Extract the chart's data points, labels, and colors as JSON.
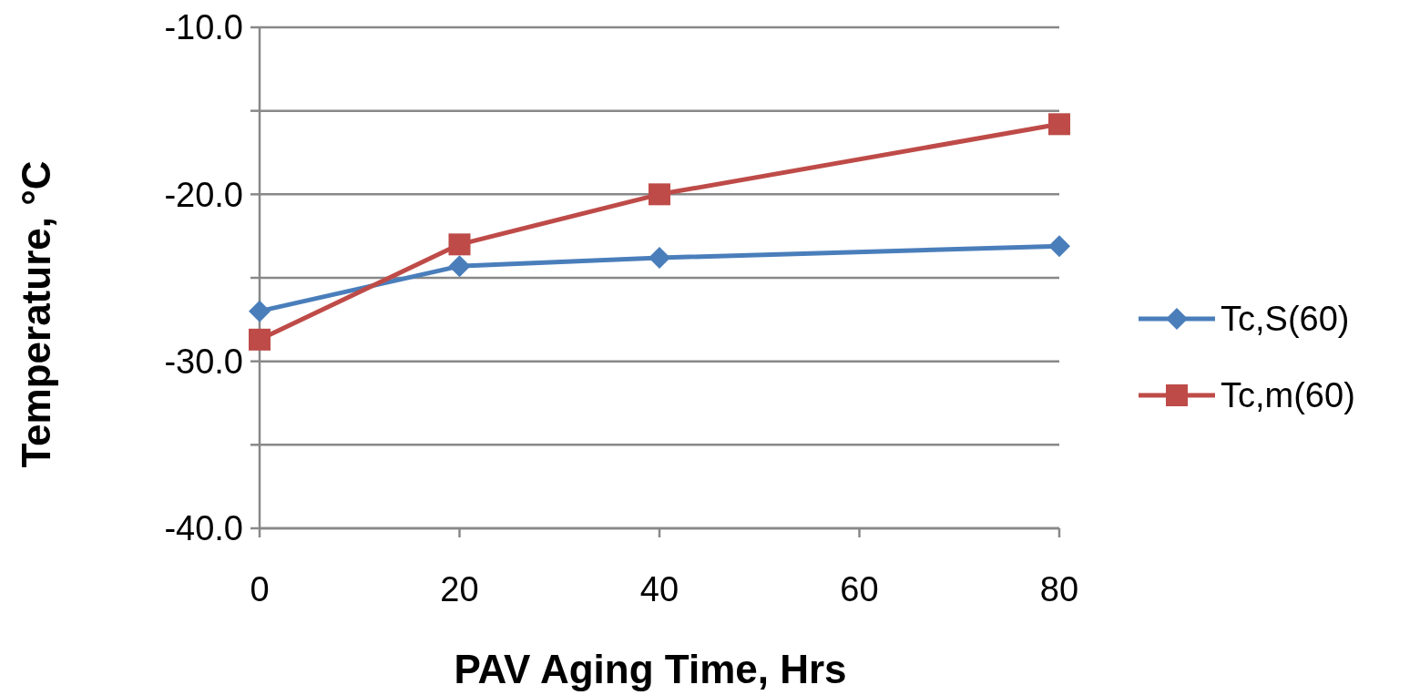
{
  "chart_data": {
    "type": "line",
    "xlabel": "PAV Aging Time, Hrs",
    "ylabel": "Temperature, °C",
    "x": [
      0,
      20,
      40,
      80
    ],
    "series": [
      {
        "name": "Tc,S(60)",
        "color": "#4a7ebb",
        "values": [
          -27.0,
          -24.3,
          -23.8,
          -23.1
        ],
        "marker": "diamond"
      },
      {
        "name": "Tc,m(60)",
        "color": "#be4b48",
        "values": [
          -28.7,
          -23.0,
          -20.0,
          -15.8
        ],
        "marker": "square"
      }
    ],
    "xlim": [
      0,
      80
    ],
    "xticks": [
      0,
      20,
      40,
      60,
      80
    ],
    "ylim": [
      -40,
      -10
    ],
    "yticks": [
      {
        "value": -40,
        "label": "-40.0"
      },
      {
        "value": -35,
        "label": null
      },
      {
        "value": -30,
        "label": "-30.0"
      },
      {
        "value": -25,
        "label": null
      },
      {
        "value": -20,
        "label": "-20.0"
      },
      {
        "value": -15,
        "label": null
      },
      {
        "value": -10,
        "label": "-10.0"
      }
    ],
    "grid": "y",
    "legend": "right",
    "line_style": "solid"
  }
}
